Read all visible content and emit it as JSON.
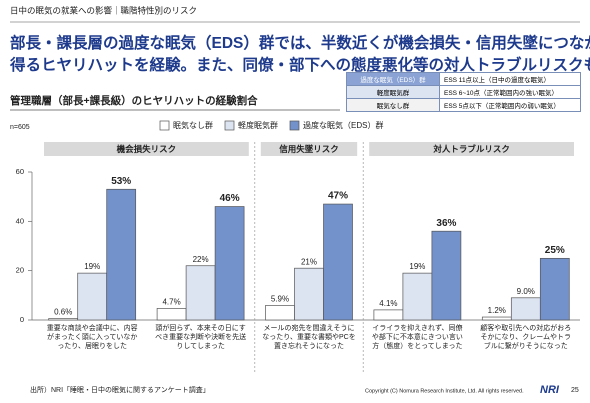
{
  "header": {
    "title": "日中の眠気の就業への影響｜職階特性別のリスク"
  },
  "headline": [
    "部長・課長層の過度な眠気（EDS）群では、半数近くが機会損失・信用失墜につながり",
    "得るヒヤリハットを経験。また、同僚・部下への態度悪化等の対人トラブルリスクも高い傾向。"
  ],
  "definitions": [
    [
      "過度な眠気（EDS）群",
      "ESS 11点以上（日中の過度な眠気）"
    ],
    [
      "軽度眠気群",
      "ESS 6~10点（正常範囲内の強い眠気）"
    ],
    [
      "眠気なし群",
      "ESS 5点以下（正常範囲内の弱い眠気）"
    ]
  ],
  "chart_data": {
    "type": "bar",
    "title": "管理職層（部長+課長級）のヒヤリハットの経験割合",
    "note": "n=605",
    "groups": [
      {
        "name": "機会損失リスク",
        "categories": [
          "重要な商談や会議中に、内容がまったく頭に入っていなかったり、居眠りをした",
          "頭が回らず、本来その日にすべき重要な判断や決断を先送りしてしまった"
        ]
      },
      {
        "name": "信用失墜リスク",
        "categories": [
          "メールの宛先を間違えそうになったり、重要な書類やPCを置き忘れそうになった"
        ]
      },
      {
        "name": "対人トラブルリスク",
        "categories": [
          "イライラを抑えきれず、同僚や部下に不本意にきつい言い方（態度）をとってしまった",
          "顧客や取引先への対応がおろそかになり、クレームやトラブルに繋がりそうになった"
        ]
      }
    ],
    "series": [
      {
        "name": "眠気なし群",
        "color": "#ffffff",
        "values": [
          0.6,
          4.7,
          5.9,
          4.1,
          1.2
        ],
        "value_labels": [
          "0.6%",
          "4.7%",
          "5.9%",
          "4.1%",
          "1.2%"
        ]
      },
      {
        "name": "軽度眠気群",
        "color": "#dce3f1",
        "values": [
          19,
          22,
          21,
          19,
          9.0
        ],
        "value_labels": [
          "19%",
          "22%",
          "21%",
          "19%",
          "9.0%"
        ]
      },
      {
        "name": "過度な眠気（EDS）群",
        "color": "#7392cc",
        "values": [
          53,
          46,
          47,
          36,
          25
        ],
        "value_labels": [
          "53%",
          "46%",
          "47%",
          "36%",
          "25%"
        ]
      }
    ],
    "ylim": [
      0,
      60
    ],
    "yticks": [
      0,
      20,
      40,
      60
    ]
  },
  "footer": {
    "source": "出所）NRI「睡眠・日中の眠気に関するアンケート調査」",
    "copyright": "Copyright (C)  Nomura Research Institute, Ltd. All rights reserved.",
    "logo": "NRI",
    "page": "25"
  }
}
